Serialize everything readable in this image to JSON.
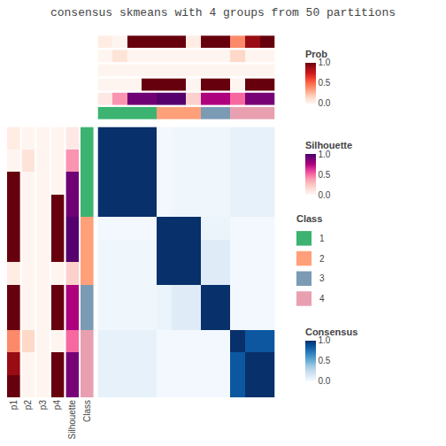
{
  "chart_data": {
    "type": "heatmap",
    "title": "consensus skmeans with 4 groups from 50 partitions",
    "tick_labels": false,
    "cells": [
      [
        1.0,
        1.0,
        1.0,
        1.0,
        0.02,
        0.04,
        0.04,
        0.04,
        0.04,
        0.08,
        0.08,
        0.08
      ],
      [
        1.0,
        1.0,
        1.0,
        1.0,
        0.02,
        0.04,
        0.04,
        0.04,
        0.04,
        0.08,
        0.08,
        0.08
      ],
      [
        1.0,
        1.0,
        1.0,
        1.0,
        0.02,
        0.04,
        0.04,
        0.04,
        0.04,
        0.08,
        0.08,
        0.08
      ],
      [
        1.0,
        1.0,
        1.0,
        1.0,
        0.02,
        0.04,
        0.04,
        0.04,
        0.04,
        0.08,
        0.08,
        0.08
      ],
      [
        0.02,
        0.02,
        0.02,
        0.02,
        1.0,
        1.0,
        1.0,
        0.06,
        0.06,
        0.02,
        0.02,
        0.02
      ],
      [
        0.04,
        0.04,
        0.04,
        0.04,
        1.0,
        1.0,
        1.0,
        0.12,
        0.12,
        0.02,
        0.02,
        0.02
      ],
      [
        0.04,
        0.04,
        0.04,
        0.04,
        1.0,
        1.0,
        1.0,
        0.12,
        0.12,
        0.02,
        0.02,
        0.02
      ],
      [
        0.04,
        0.04,
        0.04,
        0.04,
        0.06,
        0.12,
        0.12,
        1.0,
        1.0,
        0.02,
        0.02,
        0.02
      ],
      [
        0.04,
        0.04,
        0.04,
        0.04,
        0.06,
        0.12,
        0.12,
        1.0,
        1.0,
        0.02,
        0.02,
        0.02
      ],
      [
        0.08,
        0.08,
        0.08,
        0.08,
        0.02,
        0.02,
        0.02,
        0.02,
        0.02,
        1.0,
        0.85,
        0.85
      ],
      [
        0.08,
        0.08,
        0.08,
        0.08,
        0.02,
        0.02,
        0.02,
        0.02,
        0.02,
        0.85,
        1.0,
        1.0
      ],
      [
        0.08,
        0.08,
        0.08,
        0.08,
        0.02,
        0.02,
        0.02,
        0.02,
        0.02,
        0.85,
        1.0,
        1.0
      ]
    ],
    "colorbar": {
      "title": "Consensus",
      "range": [
        0,
        1
      ],
      "ticks": [
        {
          "value": 0,
          "label": "0.0"
        },
        {
          "value": 0.5,
          "label": "0.5"
        },
        {
          "value": 1,
          "label": "1.0"
        }
      ]
    },
    "scales": [
      {
        "title": "Prob",
        "range": [
          0,
          1
        ],
        "ticks": [
          {
            "value": 0,
            "label": "0.0"
          },
          {
            "value": 0.5,
            "label": "0.5"
          },
          {
            "value": 1,
            "label": "1.0"
          }
        ]
      },
      {
        "title": "Silhouette",
        "range": [
          0,
          1
        ],
        "ticks": [
          {
            "value": 0,
            "label": "0.0"
          },
          {
            "value": 0.5,
            "label": "0.5"
          },
          {
            "value": 1,
            "label": "1.0"
          }
        ]
      }
    ],
    "classes": {
      "title": "Class",
      "categories": [
        1,
        2,
        3,
        4
      ],
      "colors": [
        "#3cb371",
        "#FFA07A",
        "#7B9BB5",
        "#E8A0B0"
      ]
    },
    "annotations": [
      {
        "name": "p1",
        "scale": "Prob",
        "values": [
          0.05,
          0.0,
          1.0,
          1.0,
          1.0,
          1.0,
          0.05,
          1.0,
          1.0,
          0.4,
          0.9,
          1.0
        ]
      },
      {
        "name": "p2",
        "scale": "Prob",
        "values": [
          0.0,
          0.1,
          0.0,
          0.0,
          0.0,
          0.0,
          0.0,
          0.0,
          0.0,
          0.15,
          0.0,
          0.0
        ]
      },
      {
        "name": "p3",
        "scale": "Prob",
        "values": [
          0.0,
          0.0,
          0.0,
          0.0,
          0.0,
          0.0,
          0.0,
          0.0,
          0.0,
          0.0,
          0.0,
          0.0
        ]
      },
      {
        "name": "p4",
        "scale": "Prob",
        "values": [
          0.0,
          0.0,
          0.0,
          1.0,
          1.0,
          1.0,
          0.0,
          1.0,
          1.0,
          0.0,
          1.0,
          1.0
        ]
      },
      {
        "name": "Silhouette",
        "scale": "Silhouette",
        "values": [
          0.08,
          0.4,
          0.9,
          0.9,
          0.97,
          0.97,
          0.2,
          0.75,
          0.75,
          0.5,
          0.88,
          0.88
        ]
      },
      {
        "name": "Class",
        "scale": "Class",
        "values": [
          1,
          1,
          1,
          1,
          2,
          2,
          2,
          3,
          3,
          4,
          4,
          4
        ]
      }
    ]
  }
}
